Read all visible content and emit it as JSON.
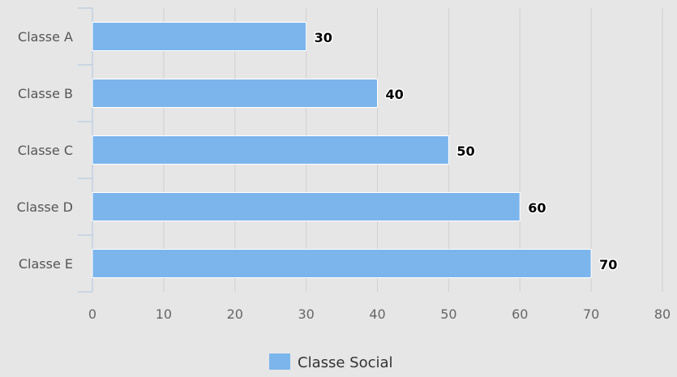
{
  "chart_data": {
    "type": "bar",
    "orientation": "horizontal",
    "categories": [
      "Classe A",
      "Classe B",
      "Classe C",
      "Classe D",
      "Classe E"
    ],
    "series": [
      {
        "name": "Classe Social",
        "values": [
          30,
          40,
          50,
          60,
          70
        ],
        "color": "#7cb5ec"
      }
    ],
    "xlim": [
      0,
      80
    ],
    "ticks": [
      "0",
      "10",
      "20",
      "30",
      "40",
      "50",
      "60",
      "70",
      "80"
    ],
    "grid": true,
    "legend": "bottom-center",
    "data_labels": true
  },
  "colors": {
    "background": "#e6e6e6",
    "grid": "#d0d0d0",
    "axis": "#c0d0e0",
    "bar_stroke": "#ffffff"
  }
}
